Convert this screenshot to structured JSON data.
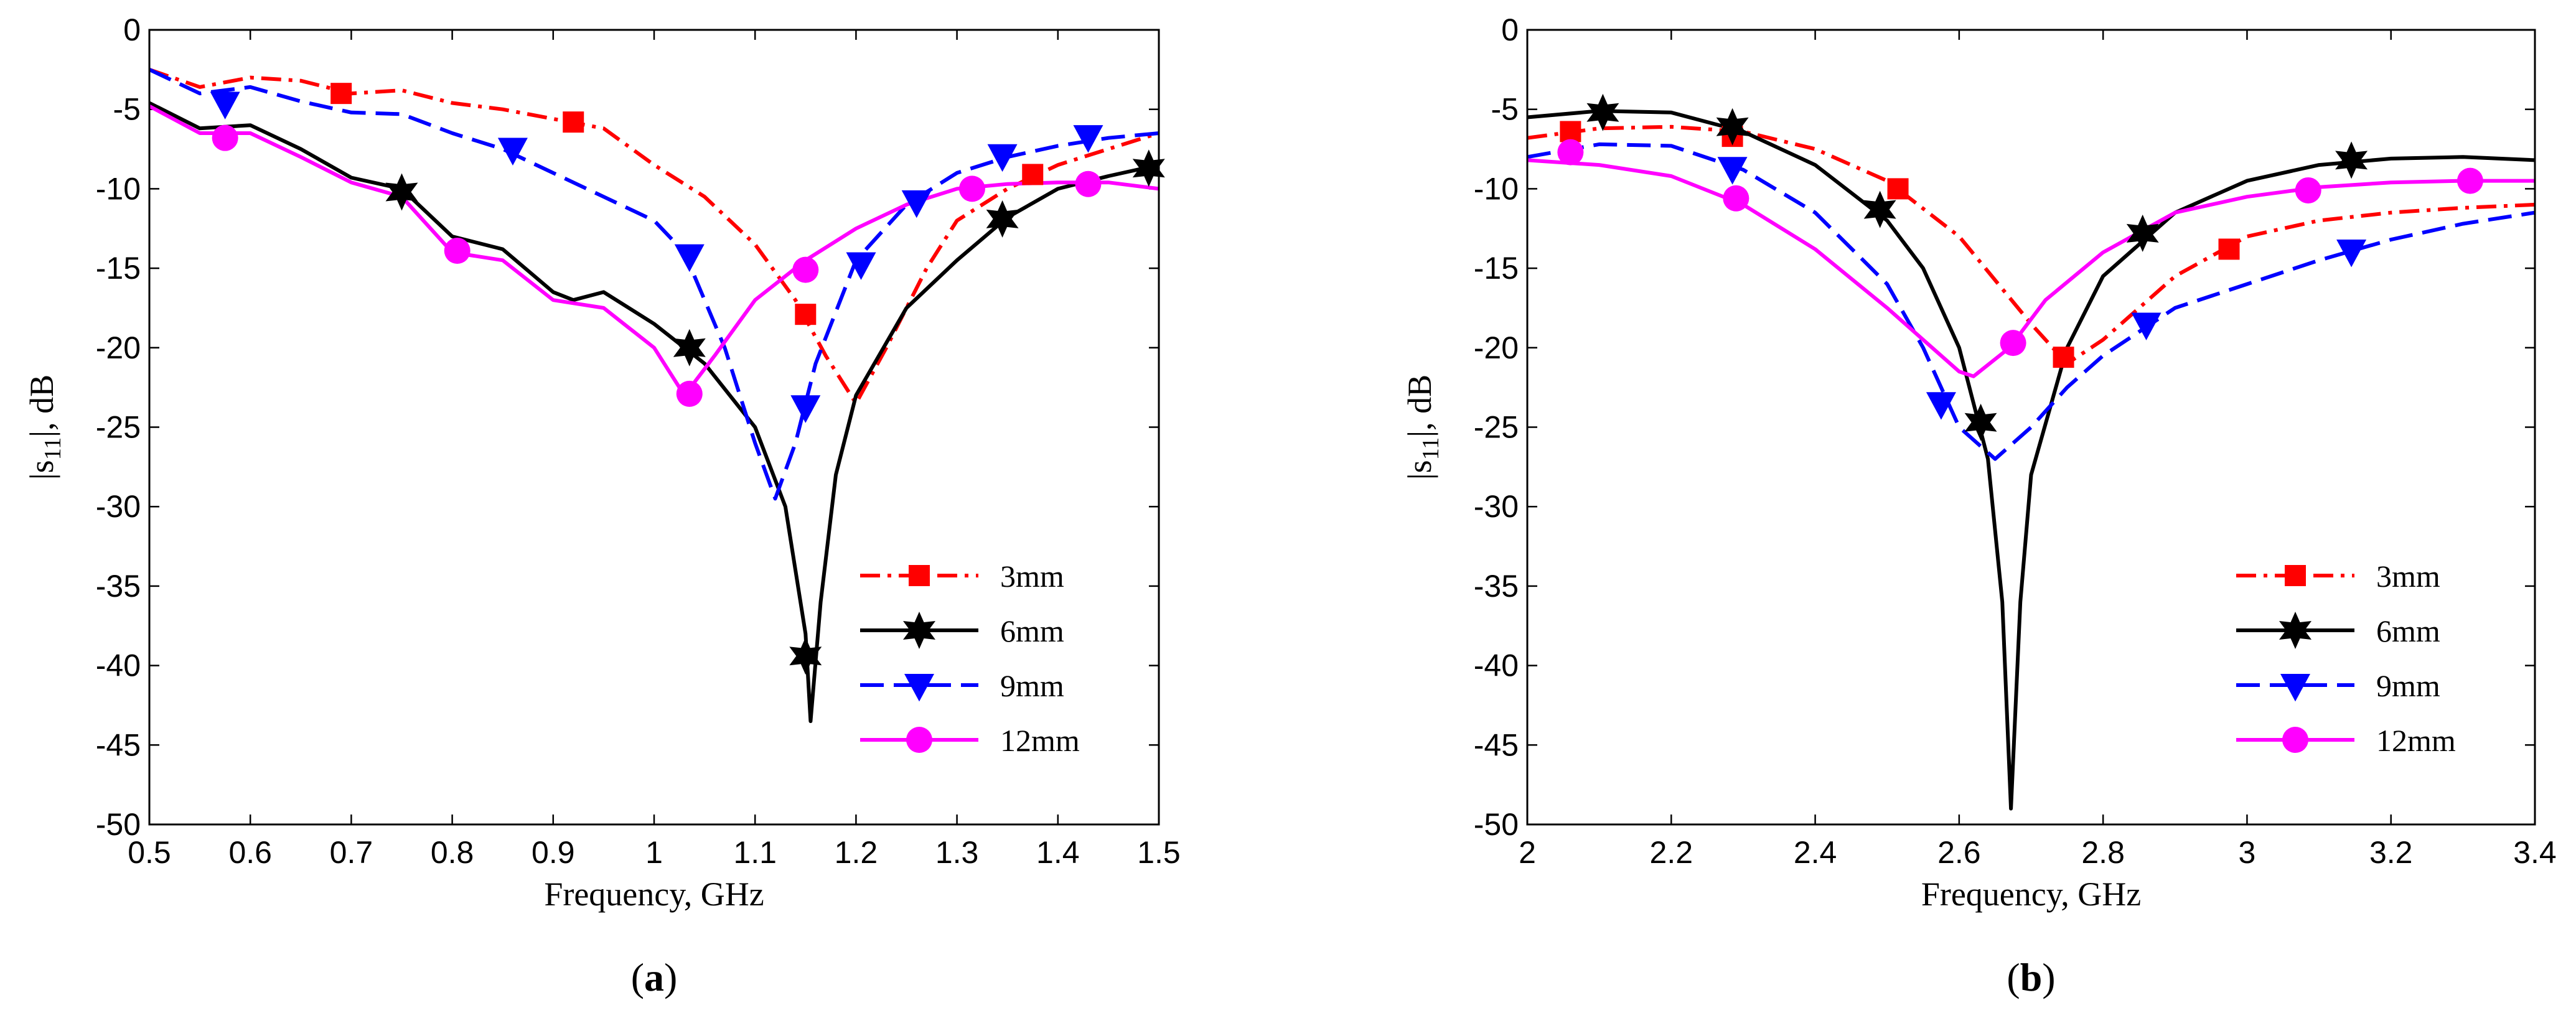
{
  "chart_data": [
    {
      "type": "line",
      "caption_letter": "a",
      "xlabel": "Frequency, GHz",
      "ylabel_main": "|s",
      "ylabel_sub": "11",
      "ylabel_tail": "|, dB",
      "xlim": [
        0.5,
        1.5
      ],
      "ylim": [
        -50,
        0
      ],
      "xticks": [
        "0.5",
        "0.6",
        "0.7",
        "0.8",
        "0.9",
        "1",
        "1.1",
        "1.2",
        "1.3",
        "1.4",
        "1.5"
      ],
      "xtick_values": [
        0.5,
        0.6,
        0.7,
        0.8,
        0.9,
        1.0,
        1.1,
        1.2,
        1.3,
        1.4,
        1.5
      ],
      "yticks": [
        "0",
        "-5",
        "-10",
        "-15",
        "-20",
        "-25",
        "-30",
        "-35",
        "-40",
        "-45",
        "-50"
      ],
      "ytick_values": [
        0,
        -5,
        -10,
        -15,
        -20,
        -25,
        -30,
        -35,
        -40,
        -45,
        -50
      ],
      "legend_position": "bottom-right",
      "series": [
        {
          "name": "3mm",
          "color": "#ff0000",
          "dash": "dashdot",
          "marker": "square",
          "points": [
            [
              0.5,
              -2.5
            ],
            [
              0.55,
              -3.6
            ],
            [
              0.6,
              -3.0
            ],
            [
              0.65,
              -3.2
            ],
            [
              0.7,
              -4.0
            ],
            [
              0.75,
              -3.8
            ],
            [
              0.8,
              -4.6
            ],
            [
              0.85,
              -5.0
            ],
            [
              0.9,
              -5.6
            ],
            [
              0.95,
              -6.2
            ],
            [
              1.0,
              -8.5
            ],
            [
              1.05,
              -10.5
            ],
            [
              1.1,
              -13.5
            ],
            [
              1.14,
              -17.0
            ],
            [
              1.17,
              -20.5
            ],
            [
              1.2,
              -23.5
            ],
            [
              1.23,
              -20.0
            ],
            [
              1.27,
              -15.0
            ],
            [
              1.3,
              -12.0
            ],
            [
              1.35,
              -10.0
            ],
            [
              1.4,
              -8.5
            ],
            [
              1.45,
              -7.5
            ],
            [
              1.5,
              -6.5
            ]
          ],
          "markers": [
            [
              0.69,
              -4.0
            ],
            [
              0.92,
              -5.8
            ],
            [
              1.15,
              -17.9
            ],
            [
              1.375,
              -9.1
            ]
          ]
        },
        {
          "name": "6mm",
          "color": "#000000",
          "dash": "solid",
          "marker": "hexagram",
          "points": [
            [
              0.5,
              -4.6
            ],
            [
              0.55,
              -6.2
            ],
            [
              0.6,
              -6.0
            ],
            [
              0.65,
              -7.5
            ],
            [
              0.7,
              -9.3
            ],
            [
              0.75,
              -10.0
            ],
            [
              0.8,
              -13.0
            ],
            [
              0.85,
              -13.8
            ],
            [
              0.9,
              -16.5
            ],
            [
              0.92,
              -17.0
            ],
            [
              0.95,
              -16.5
            ],
            [
              1.0,
              -18.5
            ],
            [
              1.05,
              -21.0
            ],
            [
              1.1,
              -25.0
            ],
            [
              1.13,
              -30.0
            ],
            [
              1.15,
              -38.0
            ],
            [
              1.155,
              -43.5
            ],
            [
              1.165,
              -36.0
            ],
            [
              1.18,
              -28.0
            ],
            [
              1.2,
              -23.0
            ],
            [
              1.25,
              -17.5
            ],
            [
              1.3,
              -14.5
            ],
            [
              1.35,
              -11.8
            ],
            [
              1.4,
              -10.0
            ],
            [
              1.45,
              -9.2
            ],
            [
              1.5,
              -8.5
            ]
          ],
          "markers": [
            [
              0.75,
              -10.2
            ],
            [
              1.035,
              -20.0
            ],
            [
              1.15,
              -39.4
            ],
            [
              1.345,
              -11.9
            ],
            [
              1.49,
              -8.7
            ]
          ]
        },
        {
          "name": "9mm",
          "color": "#0000ff",
          "dash": "dashed",
          "marker": "triangle-down",
          "points": [
            [
              0.5,
              -2.5
            ],
            [
              0.55,
              -4.0
            ],
            [
              0.6,
              -3.6
            ],
            [
              0.65,
              -4.5
            ],
            [
              0.7,
              -5.2
            ],
            [
              0.75,
              -5.3
            ],
            [
              0.8,
              -6.5
            ],
            [
              0.85,
              -7.5
            ],
            [
              0.9,
              -9.0
            ],
            [
              0.95,
              -10.5
            ],
            [
              1.0,
              -12.0
            ],
            [
              1.03,
              -14.0
            ],
            [
              1.07,
              -20.0
            ],
            [
              1.1,
              -26.0
            ],
            [
              1.12,
              -29.5
            ],
            [
              1.14,
              -26.0
            ],
            [
              1.16,
              -21.0
            ],
            [
              1.2,
              -14.5
            ],
            [
              1.25,
              -11.0
            ],
            [
              1.3,
              -9.0
            ],
            [
              1.35,
              -8.0
            ],
            [
              1.4,
              -7.3
            ],
            [
              1.45,
              -6.8
            ],
            [
              1.5,
              -6.5
            ]
          ],
          "markers": [
            [
              0.575,
              -4.6
            ],
            [
              0.86,
              -7.5
            ],
            [
              1.035,
              -14.2
            ],
            [
              1.15,
              -23.7
            ],
            [
              1.205,
              -14.7
            ],
            [
              1.26,
              -10.8
            ],
            [
              1.345,
              -7.9
            ],
            [
              1.43,
              -6.7
            ]
          ]
        },
        {
          "name": "12mm",
          "color": "#ff00ff",
          "dash": "solid",
          "marker": "circle",
          "points": [
            [
              0.5,
              -4.8
            ],
            [
              0.55,
              -6.5
            ],
            [
              0.6,
              -6.5
            ],
            [
              0.65,
              -8.0
            ],
            [
              0.7,
              -9.6
            ],
            [
              0.75,
              -10.5
            ],
            [
              0.8,
              -14.0
            ],
            [
              0.85,
              -14.5
            ],
            [
              0.9,
              -17.0
            ],
            [
              0.95,
              -17.5
            ],
            [
              1.0,
              -20.0
            ],
            [
              1.03,
              -23.0
            ],
            [
              1.06,
              -20.5
            ],
            [
              1.1,
              -17.0
            ],
            [
              1.15,
              -14.5
            ],
            [
              1.2,
              -12.5
            ],
            [
              1.25,
              -11.0
            ],
            [
              1.3,
              -10.0
            ],
            [
              1.35,
              -9.7
            ],
            [
              1.4,
              -9.6
            ],
            [
              1.45,
              -9.6
            ],
            [
              1.5,
              -10.0
            ]
          ],
          "markers": [
            [
              0.575,
              -6.8
            ],
            [
              0.805,
              -13.9
            ],
            [
              1.035,
              -22.9
            ],
            [
              1.15,
              -15.1
            ],
            [
              1.315,
              -10.0
            ],
            [
              1.43,
              -9.7
            ]
          ]
        }
      ],
      "legend": [
        "3mm",
        "6mm",
        "9mm",
        "12mm"
      ]
    },
    {
      "type": "line",
      "caption_letter": "b",
      "xlabel": "Frequency, GHz",
      "ylabel_main": "|s",
      "ylabel_sub": "11",
      "ylabel_tail": "|, dB",
      "xlim": [
        2.0,
        3.4
      ],
      "ylim": [
        -50,
        0
      ],
      "xticks": [
        "2",
        "2.2",
        "2.4",
        "2.6",
        "2.8",
        "3",
        "3.2",
        "3.4"
      ],
      "xtick_values": [
        2.0,
        2.2,
        2.4,
        2.6,
        2.8,
        3.0,
        3.2,
        3.4
      ],
      "yticks": [
        "0",
        "-5",
        "-10",
        "-15",
        "-20",
        "-25",
        "-30",
        "-35",
        "-40",
        "-45",
        "-50"
      ],
      "ytick_values": [
        0,
        -5,
        -10,
        -15,
        -20,
        -25,
        -30,
        -35,
        -40,
        -45,
        -50
      ],
      "legend_position": "bottom-right",
      "series": [
        {
          "name": "3mm",
          "color": "#ff0000",
          "dash": "dashdot",
          "marker": "square",
          "points": [
            [
              2.0,
              -6.8
            ],
            [
              2.1,
              -6.2
            ],
            [
              2.2,
              -6.1
            ],
            [
              2.3,
              -6.4
            ],
            [
              2.4,
              -7.5
            ],
            [
              2.5,
              -9.5
            ],
            [
              2.6,
              -13.0
            ],
            [
              2.7,
              -18.5
            ],
            [
              2.75,
              -21.0
            ],
            [
              2.8,
              -19.5
            ],
            [
              2.9,
              -15.5
            ],
            [
              3.0,
              -13.0
            ],
            [
              3.1,
              -12.0
            ],
            [
              3.2,
              -11.5
            ],
            [
              3.3,
              -11.2
            ],
            [
              3.4,
              -11.0
            ]
          ],
          "markers": [
            [
              2.06,
              -6.4
            ],
            [
              2.285,
              -6.7
            ],
            [
              2.515,
              -10.0
            ],
            [
              2.745,
              -20.6
            ],
            [
              2.975,
              -13.8
            ]
          ]
        },
        {
          "name": "6mm",
          "color": "#000000",
          "dash": "solid",
          "marker": "hexagram",
          "points": [
            [
              2.0,
              -5.5
            ],
            [
              2.1,
              -5.1
            ],
            [
              2.2,
              -5.2
            ],
            [
              2.3,
              -6.4
            ],
            [
              2.4,
              -8.5
            ],
            [
              2.5,
              -12.0
            ],
            [
              2.55,
              -15.0
            ],
            [
              2.6,
              -20.0
            ],
            [
              2.64,
              -27.0
            ],
            [
              2.66,
              -36.0
            ],
            [
              2.672,
              -49.0
            ],
            [
              2.685,
              -36.0
            ],
            [
              2.7,
              -28.0
            ],
            [
              2.75,
              -20.0
            ],
            [
              2.8,
              -15.5
            ],
            [
              2.9,
              -11.5
            ],
            [
              3.0,
              -9.5
            ],
            [
              3.1,
              -8.5
            ],
            [
              3.2,
              -8.1
            ],
            [
              3.3,
              -8.0
            ],
            [
              3.4,
              -8.2
            ]
          ],
          "markers": [
            [
              2.105,
              -5.2
            ],
            [
              2.285,
              -6.1
            ],
            [
              2.49,
              -11.3
            ],
            [
              2.63,
              -24.7
            ],
            [
              2.855,
              -12.8
            ],
            [
              3.145,
              -8.2
            ]
          ]
        },
        {
          "name": "9mm",
          "color": "#0000ff",
          "dash": "dashed",
          "marker": "triangle-down",
          "points": [
            [
              2.0,
              -8.0
            ],
            [
              2.1,
              -7.2
            ],
            [
              2.2,
              -7.3
            ],
            [
              2.3,
              -8.8
            ],
            [
              2.4,
              -11.5
            ],
            [
              2.5,
              -16.0
            ],
            [
              2.55,
              -20.0
            ],
            [
              2.6,
              -25.0
            ],
            [
              2.65,
              -27.0
            ],
            [
              2.7,
              -25.0
            ],
            [
              2.75,
              -22.5
            ],
            [
              2.8,
              -20.5
            ],
            [
              2.9,
              -17.5
            ],
            [
              3.0,
              -16.0
            ],
            [
              3.1,
              -14.5
            ],
            [
              3.2,
              -13.2
            ],
            [
              3.3,
              -12.2
            ],
            [
              3.4,
              -11.5
            ]
          ],
          "markers": [
            [
              2.285,
              -8.7
            ],
            [
              2.575,
              -23.5
            ],
            [
              2.86,
              -18.5
            ],
            [
              3.145,
              -13.9
            ]
          ]
        },
        {
          "name": "12mm",
          "color": "#ff00ff",
          "dash": "solid",
          "marker": "circle",
          "points": [
            [
              2.0,
              -8.2
            ],
            [
              2.1,
              -8.5
            ],
            [
              2.2,
              -9.2
            ],
            [
              2.3,
              -11.0
            ],
            [
              2.4,
              -13.8
            ],
            [
              2.5,
              -17.5
            ],
            [
              2.6,
              -21.5
            ],
            [
              2.62,
              -21.8
            ],
            [
              2.67,
              -20.0
            ],
            [
              2.72,
              -17.0
            ],
            [
              2.8,
              -14.0
            ],
            [
              2.9,
              -11.5
            ],
            [
              3.0,
              -10.5
            ],
            [
              3.1,
              -9.9
            ],
            [
              3.2,
              -9.6
            ],
            [
              3.3,
              -9.5
            ],
            [
              3.4,
              -9.5
            ]
          ],
          "markers": [
            [
              2.06,
              -7.7
            ],
            [
              2.29,
              -10.6
            ],
            [
              2.675,
              -19.7
            ],
            [
              3.085,
              -10.1
            ],
            [
              3.31,
              -9.5
            ]
          ]
        }
      ],
      "legend": [
        "3mm",
        "6mm",
        "9mm",
        "12mm"
      ]
    }
  ]
}
